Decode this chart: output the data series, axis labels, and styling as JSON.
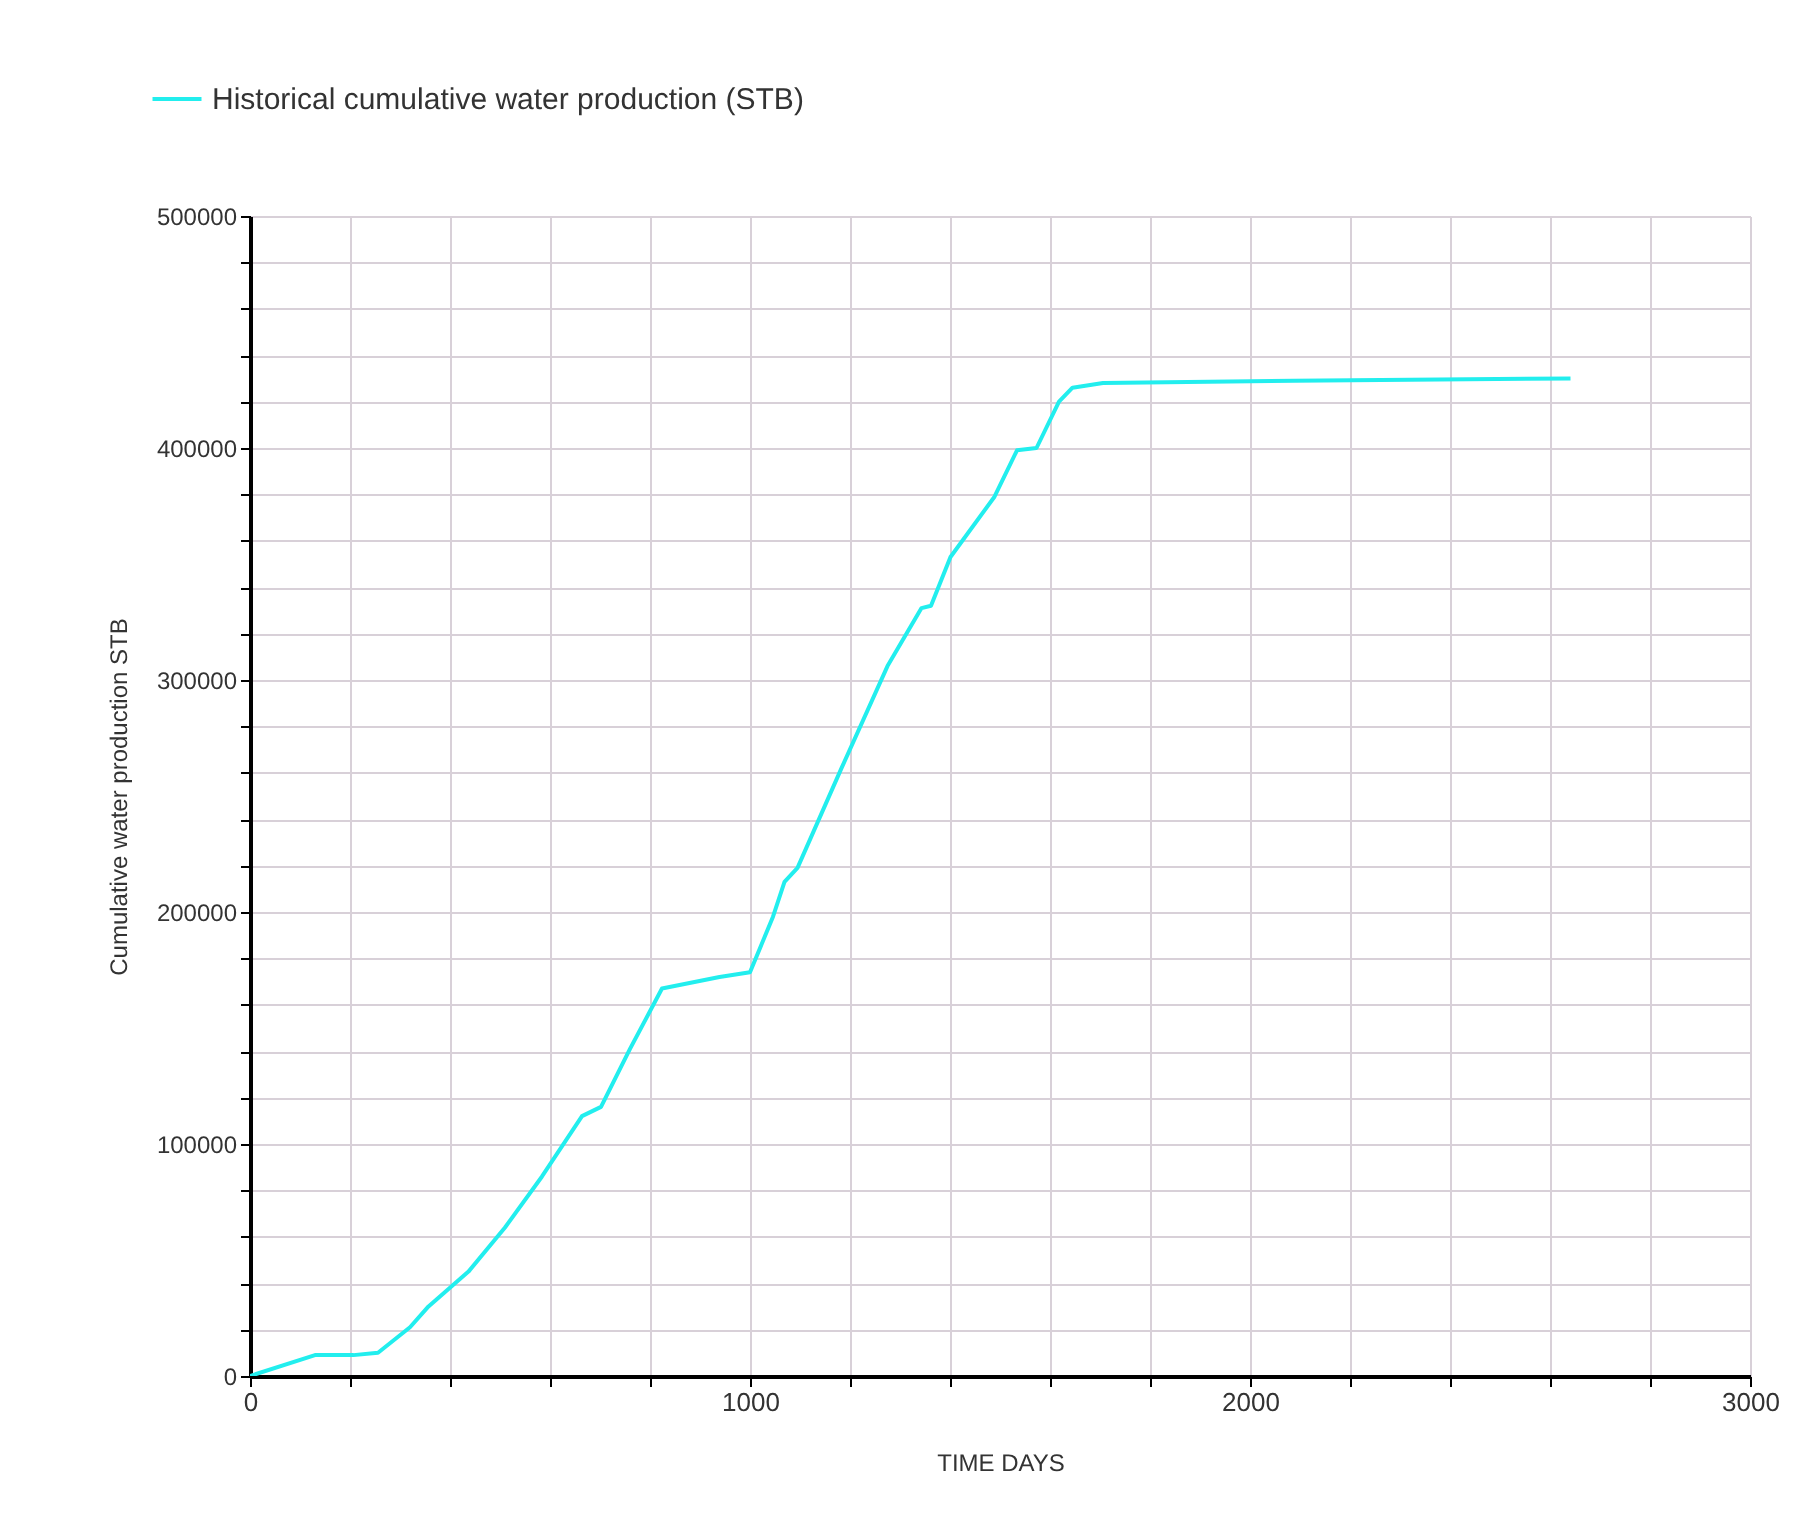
{
  "chart_data": {
    "type": "line",
    "xlabel": "TIME    DAYS",
    "ylabel": "Cumulative water production    STB",
    "series": [
      {
        "name": "Historical cumulative water production (STB)",
        "color": "#22eeee",
        "x": [
          0,
          130,
          207,
          256,
          320,
          357,
          437,
          510,
          584,
          664,
          702,
          760,
          824,
          939,
          1000,
          1046,
          1069,
          1095,
          1183,
          1275,
          1343,
          1362,
          1401,
          1489,
          1534,
          1573,
          1618,
          1645,
          1706,
          2088,
          2641
        ],
        "values": [
          0,
          9000,
          9000,
          10000,
          21000,
          30000,
          45000,
          64000,
          86000,
          112000,
          116000,
          141000,
          167000,
          172000,
          174000,
          198000,
          213000,
          219000,
          262000,
          306000,
          331000,
          332000,
          353000,
          379000,
          399000,
          400000,
          420000,
          426000,
          428000,
          429000,
          430000
        ]
      }
    ],
    "xlim": [
      0,
      3000
    ],
    "xticks": [
      0,
      {
        "value": 200,
        "label": null
      },
      {
        "value": 400,
        "label": null
      },
      {
        "value": 600,
        "label": null
      },
      {
        "value": 800,
        "label": null
      },
      1000,
      {
        "value": 1200,
        "label": null
      },
      {
        "value": 1400,
        "label": null
      },
      {
        "value": 1600,
        "label": null
      },
      {
        "value": 1800,
        "label": null
      },
      2000,
      {
        "value": 2200,
        "label": null
      },
      {
        "value": 2400,
        "label": null
      },
      {
        "value": 2600,
        "label": null
      },
      {
        "value": 2800,
        "label": null
      },
      3000
    ],
    "ylim": [
      0,
      500000
    ],
    "yticks": [
      0,
      {
        "value": 20000,
        "label": null
      },
      {
        "value": 40000,
        "label": null
      },
      {
        "value": 60000,
        "label": null
      },
      {
        "value": 80000,
        "label": null
      },
      100000,
      {
        "value": 120000,
        "label": null
      },
      {
        "value": 140000,
        "label": null
      },
      {
        "value": 160000,
        "label": null
      },
      {
        "value": 180000,
        "label": null
      },
      200000,
      {
        "value": 220000,
        "label": null
      },
      {
        "value": 240000,
        "label": null
      },
      {
        "value": 260000,
        "label": null
      },
      {
        "value": 280000,
        "label": null
      },
      300000,
      {
        "value": 320000,
        "label": null
      },
      {
        "value": 340000,
        "label": null
      },
      {
        "value": 360000,
        "label": null
      },
      {
        "value": 380000,
        "label": null
      },
      400000,
      {
        "value": 420000,
        "label": null
      },
      {
        "value": 440000,
        "label": null
      },
      {
        "value": 460000,
        "label": null
      },
      {
        "value": 480000,
        "label": null
      },
      500000
    ],
    "grid": true,
    "legend": "top",
    "line_style": "solid",
    "marker": "none"
  }
}
